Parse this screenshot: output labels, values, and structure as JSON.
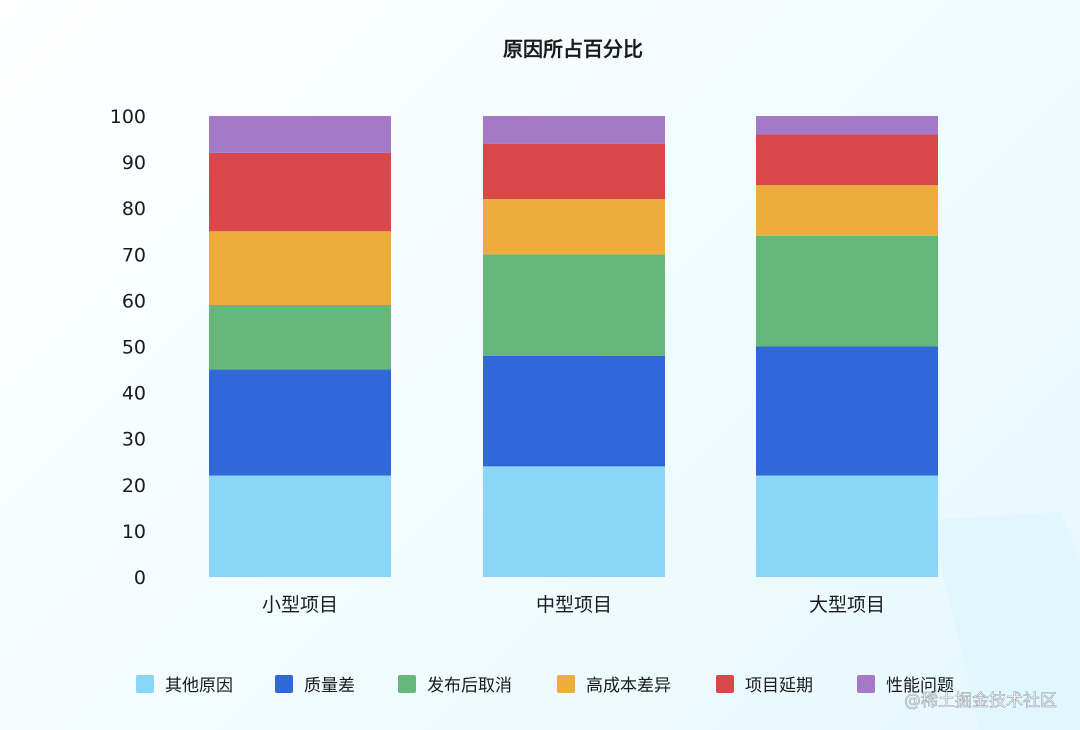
{
  "watermark": "@稀土掘金技术社区",
  "chart_data": {
    "type": "bar",
    "stacked": true,
    "title": "原因所占百分比",
    "categories": [
      "小型项目",
      "中型项目",
      "大型项目"
    ],
    "ylim": [
      0,
      100
    ],
    "yticks": [
      0,
      10,
      20,
      30,
      40,
      50,
      60,
      70,
      80,
      90,
      100
    ],
    "legend_position": "bottom",
    "grid": false,
    "series": [
      {
        "name": "其他原因",
        "color": "#89d6f7",
        "values": [
          22,
          24,
          22
        ]
      },
      {
        "name": "质量差",
        "color": "#3068da",
        "values": [
          23,
          24,
          28
        ]
      },
      {
        "name": "发布后取消",
        "color": "#67b77a",
        "values": [
          14,
          22,
          24
        ]
      },
      {
        "name": "高成本差异",
        "color": "#edac3b",
        "values": [
          16,
          12,
          11
        ]
      },
      {
        "name": "项目延期",
        "color": "#d9474a",
        "values": [
          17,
          12,
          11
        ]
      },
      {
        "name": "性能问题",
        "color": "#a47ac6",
        "values": [
          8,
          6,
          4
        ]
      }
    ]
  }
}
